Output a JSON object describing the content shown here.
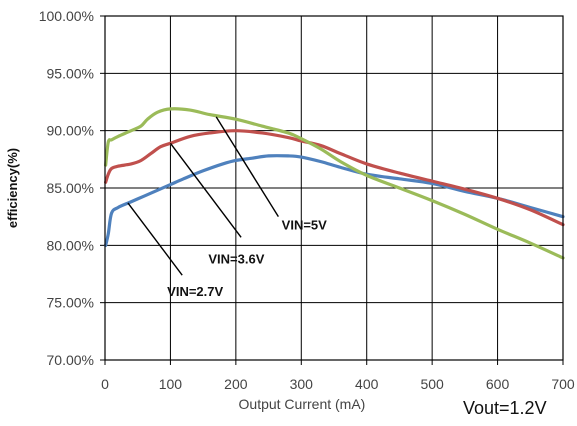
{
  "chart_data": {
    "type": "line",
    "xlabel": "Output Current (mA)",
    "ylabel": "efficiency(%)",
    "xlim": [
      0,
      700
    ],
    "ylim": [
      70,
      100
    ],
    "x_ticks": [
      "0",
      "100",
      "200",
      "300",
      "400",
      "500",
      "600",
      "700"
    ],
    "y_ticks": [
      "70.00%",
      "75.00%",
      "80.00%",
      "85.00%",
      "90.00%",
      "95.00%",
      "100.00%"
    ],
    "grid": true,
    "footnote": "Vout=1.2V",
    "series": [
      {
        "name": "VIN=2.7V",
        "color": "#4f81bd",
        "points": [
          [
            1,
            80.0
          ],
          [
            5,
            81.0
          ],
          [
            10,
            82.8
          ],
          [
            20,
            83.3
          ],
          [
            40,
            83.8
          ],
          [
            60,
            84.3
          ],
          [
            80,
            84.8
          ],
          [
            100,
            85.3
          ],
          [
            120,
            85.8
          ],
          [
            150,
            86.5
          ],
          [
            180,
            87.1
          ],
          [
            200,
            87.4
          ],
          [
            225,
            87.6
          ],
          [
            250,
            87.8
          ],
          [
            280,
            87.8
          ],
          [
            300,
            87.7
          ],
          [
            330,
            87.3
          ],
          [
            360,
            86.8
          ],
          [
            400,
            86.2
          ],
          [
            450,
            85.8
          ],
          [
            500,
            85.4
          ],
          [
            550,
            84.7
          ],
          [
            600,
            84.1
          ],
          [
            650,
            83.3
          ],
          [
            700,
            82.5
          ]
        ]
      },
      {
        "name": "VIN=3.6V",
        "color": "#c0504d",
        "points": [
          [
            1,
            85.5
          ],
          [
            5,
            86.2
          ],
          [
            10,
            86.7
          ],
          [
            20,
            86.9
          ],
          [
            40,
            87.1
          ],
          [
            55,
            87.4
          ],
          [
            70,
            88.0
          ],
          [
            85,
            88.6
          ],
          [
            100,
            88.9
          ],
          [
            130,
            89.5
          ],
          [
            160,
            89.8
          ],
          [
            200,
            90.0
          ],
          [
            240,
            89.8
          ],
          [
            280,
            89.4
          ],
          [
            300,
            89.1
          ],
          [
            330,
            88.7
          ],
          [
            360,
            88.0
          ],
          [
            400,
            87.1
          ],
          [
            450,
            86.3
          ],
          [
            500,
            85.6
          ],
          [
            550,
            84.9
          ],
          [
            600,
            84.1
          ],
          [
            650,
            83.1
          ],
          [
            700,
            81.8
          ]
        ]
      },
      {
        "name": "VIN=5V",
        "color": "#9bbb59",
        "points": [
          [
            1,
            87.0
          ],
          [
            5,
            89.0
          ],
          [
            10,
            89.2
          ],
          [
            20,
            89.5
          ],
          [
            40,
            90.0
          ],
          [
            55,
            90.4
          ],
          [
            65,
            91.0
          ],
          [
            80,
            91.6
          ],
          [
            100,
            91.9
          ],
          [
            130,
            91.8
          ],
          [
            160,
            91.4
          ],
          [
            200,
            91.0
          ],
          [
            240,
            90.4
          ],
          [
            280,
            89.8
          ],
          [
            300,
            89.3
          ],
          [
            330,
            88.4
          ],
          [
            360,
            87.3
          ],
          [
            400,
            86.1
          ],
          [
            450,
            85.0
          ],
          [
            500,
            83.9
          ],
          [
            550,
            82.7
          ],
          [
            600,
            81.4
          ],
          [
            650,
            80.2
          ],
          [
            700,
            78.9
          ]
        ]
      }
    ],
    "annotations": [
      {
        "text": "VIN=5V",
        "label_data": [
          270,
          81.4
        ],
        "line_from": [
          170,
          91.2
        ],
        "line_to": [
          265,
          82.5
        ]
      },
      {
        "text": "VIN=3.6V",
        "label_data": [
          158,
          78.4
        ],
        "line_from": [
          100,
          88.9
        ],
        "line_to": [
          208,
          80.7
        ]
      },
      {
        "text": "VIN=2.7V",
        "label_data": [
          95,
          75.6
        ],
        "line_from": [
          35,
          83.7
        ],
        "line_to": [
          118,
          77.4
        ]
      }
    ]
  }
}
